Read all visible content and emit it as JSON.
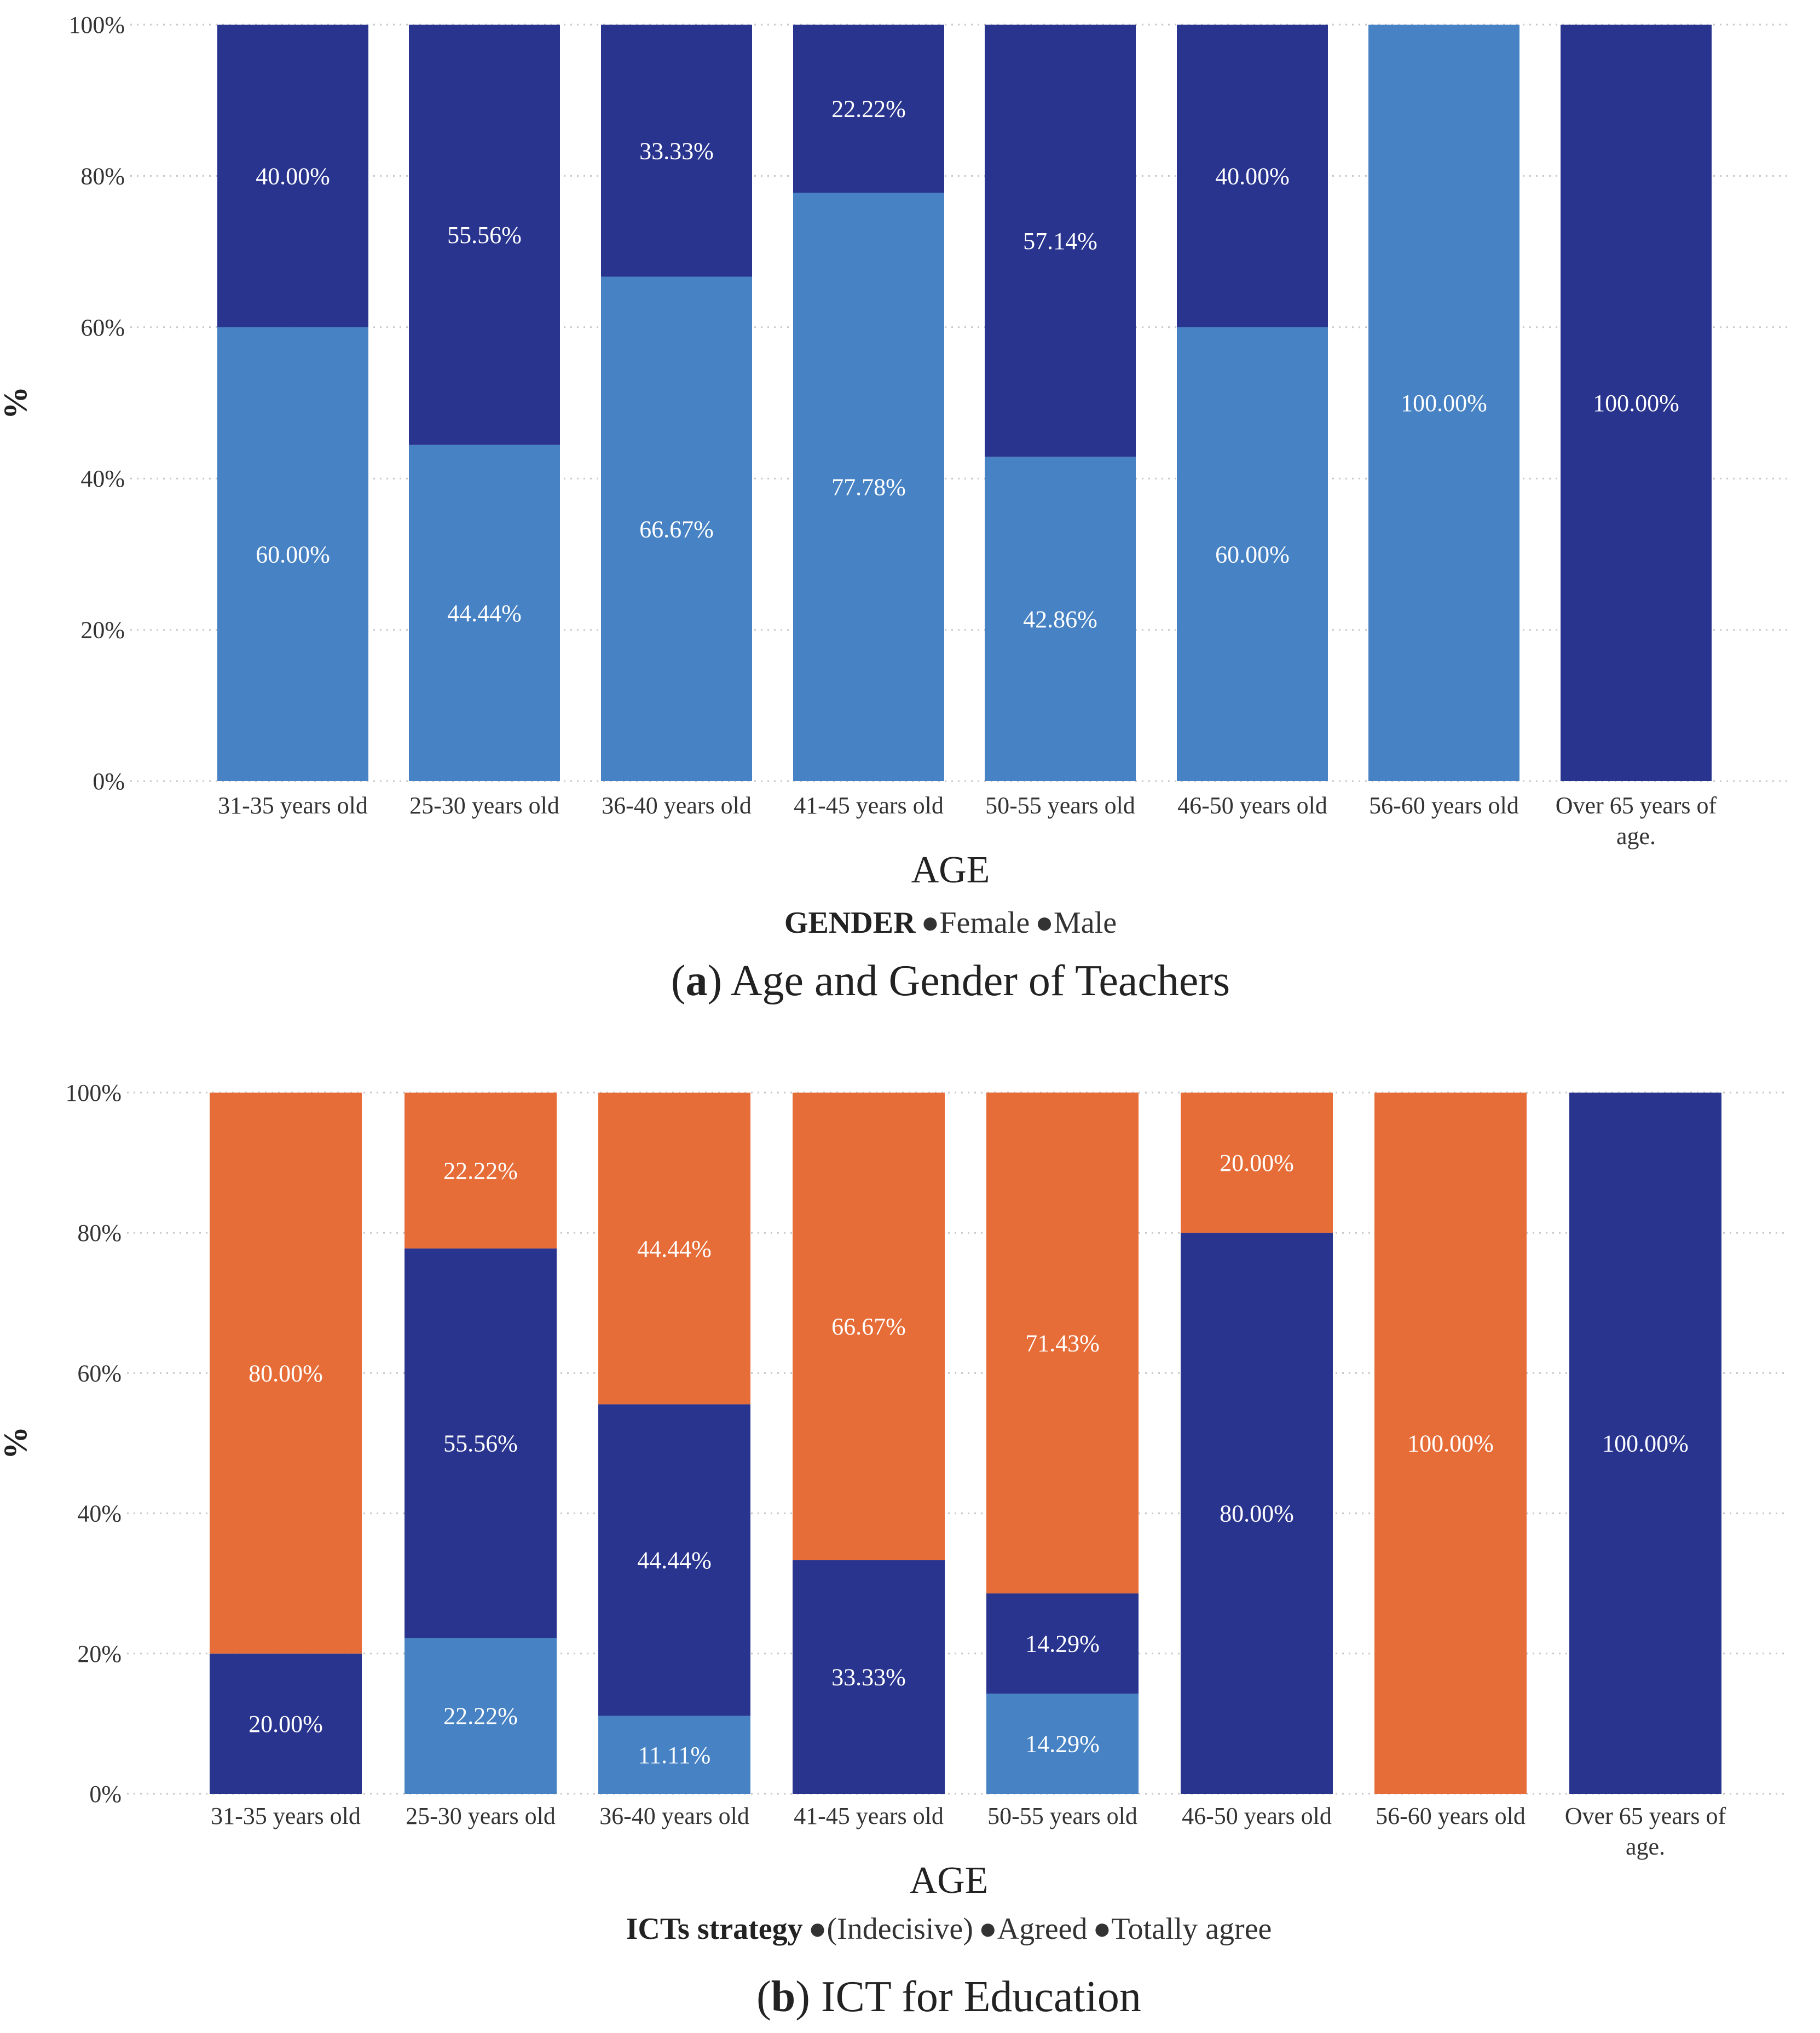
{
  "chart_data": [
    {
      "type": "bar",
      "stacked": true,
      "percent": true,
      "caption_prefix": "(",
      "caption_letter": "a",
      "caption_text": ") Age and Gender of Teachers",
      "xlabel": "AGE",
      "ylabel": "%",
      "ylim": [
        0,
        100
      ],
      "yticks": [
        "0%",
        "20%",
        "40%",
        "60%",
        "80%",
        "100%"
      ],
      "grid": true,
      "categories": [
        [
          "31-35 years old"
        ],
        [
          "25-30 years old"
        ],
        [
          "36-40 years old"
        ],
        [
          "41-45 years old"
        ],
        [
          "50-55 years old"
        ],
        [
          "46-50 years old"
        ],
        [
          "56-60 years old"
        ],
        [
          "Over 65 years of",
          "age."
        ]
      ],
      "legend_title": "GENDER",
      "legend_position": "bottom",
      "series": [
        {
          "name": "Female",
          "color": "#4682C4",
          "values": [
            60.0,
            44.44,
            66.67,
            77.78,
            42.86,
            60.0,
            100.0,
            0
          ],
          "labels": [
            "60.00%",
            "44.44%",
            "66.67%",
            "77.78%",
            "42.86%",
            "60.00%",
            "100.00%",
            ""
          ]
        },
        {
          "name": "Male",
          "color": "#29348F",
          "values": [
            40.0,
            55.56,
            33.33,
            22.22,
            57.14,
            40.0,
            0,
            100.0
          ],
          "labels": [
            "40.00%",
            "55.56%",
            "33.33%",
            "22.22%",
            "57.14%",
            "40.00%",
            "",
            "100.00%"
          ]
        }
      ]
    },
    {
      "type": "bar",
      "stacked": true,
      "percent": true,
      "caption_prefix": "(",
      "caption_letter": "b",
      "caption_text": ") ICT for Education",
      "xlabel": "AGE",
      "ylabel": "%",
      "ylim": [
        0,
        100
      ],
      "yticks": [
        "0%",
        "20%",
        "40%",
        "60%",
        "80%",
        "100%"
      ],
      "grid": true,
      "categories": [
        [
          "31-35 years old"
        ],
        [
          "25-30 years old"
        ],
        [
          "36-40 years old"
        ],
        [
          "41-45 years old"
        ],
        [
          "50-55 years old"
        ],
        [
          "46-50 years old"
        ],
        [
          "56-60 years old"
        ],
        [
          "Over 65 years of",
          "age."
        ]
      ],
      "legend_title": "ICTs strategy",
      "legend_position": "bottom",
      "series": [
        {
          "name": "(Indecisive)",
          "color": "#4682C4",
          "values": [
            0,
            22.22,
            11.11,
            0,
            14.29,
            0,
            0,
            0
          ],
          "labels": [
            "",
            "22.22%",
            "11.11%",
            "",
            "14.29%",
            "",
            "",
            ""
          ]
        },
        {
          "name": "Agreed",
          "color": "#29348F",
          "values": [
            20.0,
            55.56,
            44.44,
            33.33,
            14.29,
            80.0,
            0,
            100.0
          ],
          "labels": [
            "20.00%",
            "55.56%",
            "44.44%",
            "33.33%",
            "14.29%",
            "80.00%",
            "",
            "100.00%"
          ]
        },
        {
          "name": "Totally agree",
          "color": "#E76D38",
          "values": [
            80.0,
            22.22,
            44.44,
            66.67,
            71.43,
            20.0,
            100.0,
            0
          ],
          "labels": [
            "80.00%",
            "22.22%",
            "44.44%",
            "66.67%",
            "71.43%",
            "20.00%",
            "100.00%",
            ""
          ]
        }
      ]
    }
  ]
}
